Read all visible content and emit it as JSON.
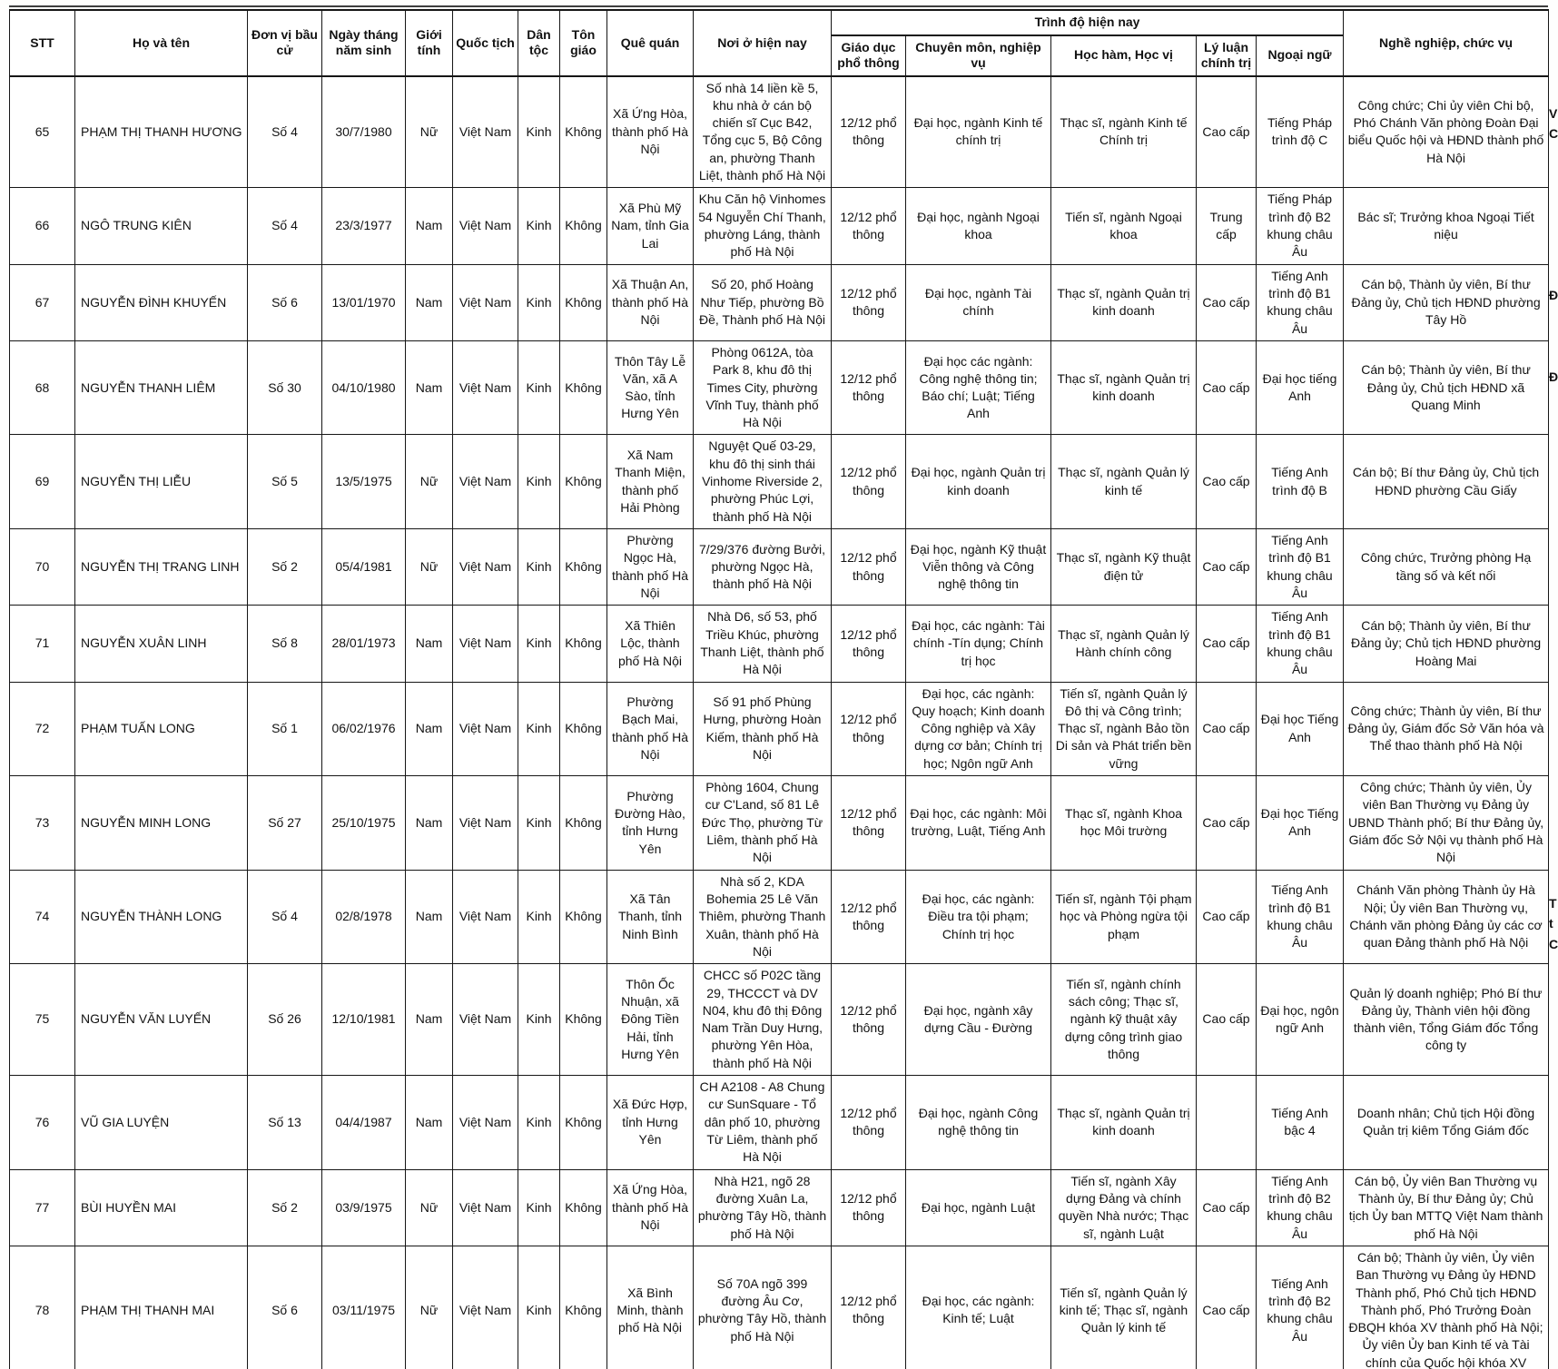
{
  "table": {
    "header": {
      "stt": "STT",
      "ho_ten": "Họ và tên",
      "don_vi": "Đơn vị bầu cử",
      "ngay_sinh": "Ngày tháng năm sinh",
      "gioi_tinh": "Giới tính",
      "quoc_tich": "Quốc tịch",
      "dan_toc": "Dân tộc",
      "ton_giao": "Tôn giáo",
      "que_quan": "Quê quán",
      "noi_o": "Nơi ở hiện nay",
      "trinh_do_group": "Trình độ hiện nay",
      "giao_duc": "Giáo dục phổ thông",
      "chuyen_mon": "Chuyên môn, nghiệp vụ",
      "hoc_ham": "Học hàm, Học vị",
      "ly_luan": "Lý luận chính trị",
      "ngoai_ngu": "Ngoại ngữ",
      "nghe_nghiep": "Nghề nghiệp, chức vụ"
    },
    "rows": [
      {
        "stt": "65",
        "ho_ten": "PHẠM THỊ THANH HƯƠNG",
        "don_vi": "Số 4",
        "ngay_sinh": "30/7/1980",
        "gioi_tinh": "Nữ",
        "quoc_tich": "Việt Nam",
        "dan_toc": "Kinh",
        "ton_giao": "Không",
        "que_quan": "Xã Ứng Hòa, thành phố Hà Nội",
        "noi_o": "Số nhà 14 liền kề 5, khu nhà ở cán bộ chiến sĩ Cục B42, Tổng cục 5, Bộ Công an, phường Thanh Liệt, thành phố Hà Nội",
        "giao_duc": "12/12 phổ thông",
        "chuyen_mon": "Đại học, ngành Kinh tế chính trị",
        "hoc_ham": "Thạc sĩ, ngành Kinh tế Chính trị",
        "ly_luan": "Cao cấp",
        "ngoai_ngu": "Tiếng Pháp trình độ C",
        "nghe_nghiep": "Công chức; Chi ủy viên Chi bộ, Phó Chánh Văn phòng Đoàn Đại biểu Quốc hội và HĐND thành phố Hà Nội"
      },
      {
        "stt": "66",
        "ho_ten": "NGÔ TRUNG KIÊN",
        "don_vi": "Số 4",
        "ngay_sinh": "23/3/1977",
        "gioi_tinh": "Nam",
        "quoc_tich": "Việt Nam",
        "dan_toc": "Kinh",
        "ton_giao": "Không",
        "que_quan": "Xã Phù Mỹ Nam, tỉnh Gia Lai",
        "noi_o": "Khu Căn hộ Vinhomes 54 Nguyễn Chí Thanh, phường Láng, thành phố Hà Nội",
        "giao_duc": "12/12 phổ thông",
        "chuyen_mon": "Đại học, ngành Ngoại khoa",
        "hoc_ham": "Tiến sĩ, ngành Ngoại khoa",
        "ly_luan": "Trung cấp",
        "ngoai_ngu": "Tiếng Pháp trình độ B2 khung châu Âu",
        "nghe_nghiep": "Bác sĩ; Trưởng khoa Ngoại Tiết niệu"
      },
      {
        "stt": "67",
        "ho_ten": "NGUYỄN ĐÌNH KHUYẾN",
        "don_vi": "Số 6",
        "ngay_sinh": "13/01/1970",
        "gioi_tinh": "Nam",
        "quoc_tich": "Việt Nam",
        "dan_toc": "Kinh",
        "ton_giao": "Không",
        "que_quan": "Xã Thuận An, thành phố Hà Nội",
        "noi_o": "Số 20, phố Hoàng Như Tiếp, phường Bồ Đề, Thành phố Hà Nội",
        "giao_duc": "12/12 phổ thông",
        "chuyen_mon": "Đại học, ngành Tài chính",
        "hoc_ham": "Thạc sĩ, ngành Quản trị kinh doanh",
        "ly_luan": "Cao cấp",
        "ngoai_ngu": "Tiếng Anh trình độ B1 khung châu Âu",
        "nghe_nghiep": "Cán bộ, Thành ủy viên, Bí thư Đảng ủy, Chủ tịch HĐND phường Tây Hồ"
      },
      {
        "stt": "68",
        "ho_ten": "NGUYỄN THANH LIÊM",
        "don_vi": "Số 30",
        "ngay_sinh": "04/10/1980",
        "gioi_tinh": "Nam",
        "quoc_tich": "Việt Nam",
        "dan_toc": "Kinh",
        "ton_giao": "Không",
        "que_quan": "Thôn Tây Lễ Văn, xã A Sào, tỉnh Hưng Yên",
        "noi_o": "Phòng 0612A, tòa Park 8, khu đô thị Times City, phường Vĩnh Tuy, thành phố Hà Nội",
        "giao_duc": "12/12 phổ thông",
        "chuyen_mon": "Đại học các ngành: Công nghệ thông tin; Báo chí; Luật; Tiếng Anh",
        "hoc_ham": "Thạc sĩ, ngành Quản trị kinh doanh",
        "ly_luan": "Cao cấp",
        "ngoai_ngu": "Đại học tiếng Anh",
        "nghe_nghiep": "Cán bộ; Thành ủy viên, Bí thư Đảng ủy, Chủ tịch HĐND xã Quang Minh"
      },
      {
        "stt": "69",
        "ho_ten": "NGUYỄN THỊ LIỄU",
        "don_vi": "Số 5",
        "ngay_sinh": "13/5/1975",
        "gioi_tinh": "Nữ",
        "quoc_tich": "Việt Nam",
        "dan_toc": "Kinh",
        "ton_giao": "Không",
        "que_quan": "Xã Nam Thanh Miện, thành phố Hải Phòng",
        "noi_o": "Nguyệt Quế 03-29, khu đô thị sinh thái Vinhome Riverside 2, phường Phúc Lợi, thành phố Hà Nội",
        "giao_duc": "12/12 phổ thông",
        "chuyen_mon": "Đại học, ngành Quản trị kinh doanh",
        "hoc_ham": "Thạc sĩ, ngành Quản lý kinh tế",
        "ly_luan": "Cao cấp",
        "ngoai_ngu": "Tiếng Anh trình độ B",
        "nghe_nghiep": "Cán bộ; Bí thư Đảng ủy, Chủ tịch HĐND phường Cầu Giấy"
      },
      {
        "stt": "70",
        "ho_ten": "NGUYỄN THỊ TRANG LINH",
        "don_vi": "Số 2",
        "ngay_sinh": "05/4/1981",
        "gioi_tinh": "Nữ",
        "quoc_tich": "Việt Nam",
        "dan_toc": "Kinh",
        "ton_giao": "Không",
        "que_quan": "Phường Ngọc Hà, thành phố Hà Nội",
        "noi_o": "7/29/376 đường Bưởi, phường Ngọc Hà, thành phố Hà Nội",
        "giao_duc": "12/12 phổ thông",
        "chuyen_mon": "Đại học, ngành Kỹ thuật Viễn thông và Công nghệ thông tin",
        "hoc_ham": "Thạc sĩ, ngành Kỹ thuật điện tử",
        "ly_luan": "Cao cấp",
        "ngoai_ngu": "Tiếng Anh trình độ B1 khung châu Âu",
        "nghe_nghiep": "Công chức, Trưởng phòng Hạ tầng số và kết nối"
      },
      {
        "stt": "71",
        "ho_ten": "NGUYỄN XUÂN LINH",
        "don_vi": "Số 8",
        "ngay_sinh": "28/01/1973",
        "gioi_tinh": "Nam",
        "quoc_tich": "Việt Nam",
        "dan_toc": "Kinh",
        "ton_giao": "Không",
        "que_quan": "Xã Thiên Lộc, thành phố Hà Nội",
        "noi_o": "Nhà D6, số 53, phố Triều Khúc, phường Thanh Liệt, thành phố Hà Nội",
        "giao_duc": "12/12 phổ thông",
        "chuyen_mon": "Đại học, các ngành: Tài chính -Tín dụng; Chính trị học",
        "hoc_ham": "Thạc sĩ, ngành Quản lý Hành chính công",
        "ly_luan": "Cao cấp",
        "ngoai_ngu": "Tiếng Anh trình độ B1 khung châu Âu",
        "nghe_nghiep": "Cán bộ; Thành ủy viên, Bí thư Đảng ủy; Chủ tịch HĐND phường Hoàng Mai"
      },
      {
        "stt": "72",
        "ho_ten": "PHẠM TUẤN LONG",
        "don_vi": "Số 1",
        "ngay_sinh": "06/02/1976",
        "gioi_tinh": "Nam",
        "quoc_tich": "Việt Nam",
        "dan_toc": "Kinh",
        "ton_giao": "Không",
        "que_quan": "Phường Bạch Mai, thành phố Hà Nội",
        "noi_o": "Số 91 phố Phùng Hưng, phường Hoàn Kiếm, thành phố Hà Nội",
        "giao_duc": "12/12 phổ thông",
        "chuyen_mon": "Đại học, các ngành: Quy hoạch; Kinh doanh Công nghiệp và Xây dựng cơ bản; Chính trị học; Ngôn ngữ Anh",
        "hoc_ham": "Tiến sĩ, ngành Quản lý Đô thị và Công trình; Thạc sĩ, ngành Bảo tồn Di sản và Phát triển bền vững",
        "ly_luan": "Cao cấp",
        "ngoai_ngu": "Đại học Tiếng Anh",
        "nghe_nghiep": "Công chức; Thành ủy viên, Bí thư Đảng ủy, Giám đốc Sở Văn hóa và Thể thao thành phố Hà Nội"
      },
      {
        "stt": "73",
        "ho_ten": "NGUYỄN MINH LONG",
        "don_vi": "Số 27",
        "ngay_sinh": "25/10/1975",
        "gioi_tinh": "Nam",
        "quoc_tich": "Việt Nam",
        "dan_toc": "Kinh",
        "ton_giao": "Không",
        "que_quan": "Phường Đường Hào, tỉnh Hưng Yên",
        "noi_o": "Phòng 1604, Chung cư C'Land, số 81 Lê Đức Thọ, phường Từ Liêm, thành phố Hà Nội",
        "giao_duc": "12/12 phổ thông",
        "chuyen_mon": "Đại học, các ngành: Môi trường, Luật, Tiếng Anh",
        "hoc_ham": "Thạc sĩ, ngành Khoa học Môi trường",
        "ly_luan": "Cao cấp",
        "ngoai_ngu": "Đại học Tiếng Anh",
        "nghe_nghiep": "Công chức; Thành ủy viên, Ủy viên Ban Thường vụ Đảng ủy UBND Thành phố; Bí thư Đảng ủy, Giám đốc Sở Nội vụ thành phố Hà Nội"
      },
      {
        "stt": "74",
        "ho_ten": "NGUYỄN THÀNH LONG",
        "don_vi": "Số 4",
        "ngay_sinh": "02/8/1978",
        "gioi_tinh": "Nam",
        "quoc_tich": "Việt Nam",
        "dan_toc": "Kinh",
        "ton_giao": "Không",
        "que_quan": "Xã Tân Thanh, tỉnh Ninh Bình",
        "noi_o": "Nhà số 2, KDA Bohemia 25 Lê Văn Thiêm, phường Thanh Xuân, thành phố Hà Nội",
        "giao_duc": "12/12 phổ thông",
        "chuyen_mon": "Đại học, các ngành: Điều tra tội phạm; Chính trị học",
        "hoc_ham": "Tiến sĩ, ngành Tội phạm học và Phòng ngừa tội phạm",
        "ly_luan": "Cao cấp",
        "ngoai_ngu": "Tiếng Anh trình độ B1 khung châu Âu",
        "nghe_nghiep": "Chánh Văn phòng Thành ủy Hà Nội; Ủy viên Ban Thường vụ, Chánh văn phòng Đảng ủy các cơ quan Đảng thành phố Hà Nội"
      },
      {
        "stt": "75",
        "ho_ten": "NGUYỄN VĂN LUYẾN",
        "don_vi": "Số 26",
        "ngay_sinh": "12/10/1981",
        "gioi_tinh": "Nam",
        "quoc_tich": "Việt Nam",
        "dan_toc": "Kinh",
        "ton_giao": "Không",
        "que_quan": "Thôn Ốc Nhuận, xã Đông Tiền Hải, tỉnh Hưng Yên",
        "noi_o": "CHCC số P02C tầng 29, THCCCT và DV N04, khu đô thị Đông Nam Trần Duy Hưng, phường Yên Hòa, thành phố Hà Nội",
        "giao_duc": "12/12 phổ thông",
        "chuyen_mon": "Đại học, ngành xây dựng Cầu - Đường",
        "hoc_ham": "Tiến sĩ, ngành chính sách công; Thạc sĩ, ngành kỹ thuật xây dựng công trình giao thông",
        "ly_luan": "Cao cấp",
        "ngoai_ngu": "Đại học, ngôn ngữ Anh",
        "nghe_nghiep": "Quản lý doanh nghiệp; Phó Bí thư Đảng ủy, Thành viên hội đồng thành viên, Tổng Giám đốc Tổng công ty"
      },
      {
        "stt": "76",
        "ho_ten": "VŨ GIA LUYỆN",
        "don_vi": "Số 13",
        "ngay_sinh": "04/4/1987",
        "gioi_tinh": "Nam",
        "quoc_tich": "Việt Nam",
        "dan_toc": "Kinh",
        "ton_giao": "Không",
        "que_quan": "Xã Đức Hợp, tỉnh Hưng Yên",
        "noi_o": "CH A2108 - A8 Chung cư SunSquare - Tổ dân phố 10, phường Từ Liêm, thành phố Hà Nội",
        "giao_duc": "12/12 phổ thông",
        "chuyen_mon": "Đại học, ngành Công nghệ thông tin",
        "hoc_ham": "Thạc sĩ, ngành Quản trị kinh doanh",
        "ly_luan": "",
        "ngoai_ngu": "Tiếng Anh bậc 4",
        "nghe_nghiep": "Doanh nhân; Chủ tịch Hội đồng Quản trị kiêm Tổng Giám đốc"
      },
      {
        "stt": "77",
        "ho_ten": "BÙI HUYỀN MAI",
        "don_vi": "Số 2",
        "ngay_sinh": "03/9/1975",
        "gioi_tinh": "Nữ",
        "quoc_tich": "Việt Nam",
        "dan_toc": "Kinh",
        "ton_giao": "Không",
        "que_quan": "Xã Ứng Hòa, thành phố Hà Nội",
        "noi_o": "Nhà H21, ngõ 28 đường Xuân La, phường Tây Hồ, thành phố Hà Nội",
        "giao_duc": "12/12 phổ thông",
        "chuyen_mon": "Đại học, ngành Luật",
        "hoc_ham": "Tiến sĩ, ngành Xây dựng Đảng và chính quyền Nhà nước; Thạc sĩ, ngành Luật",
        "ly_luan": "Cao cấp",
        "ngoai_ngu": "Tiếng Anh trình độ B2 khung châu Âu",
        "nghe_nghiep": "Cán bộ, Ủy viên Ban Thường vụ Thành ủy, Bí thư Đảng ủy; Chủ tịch Ủy ban MTTQ Việt Nam thành phố Hà Nội"
      },
      {
        "stt": "78",
        "ho_ten": "PHẠM THỊ THANH MAI",
        "don_vi": "Số 6",
        "ngay_sinh": "03/11/1975",
        "gioi_tinh": "Nữ",
        "quoc_tich": "Việt Nam",
        "dan_toc": "Kinh",
        "ton_giao": "Không",
        "que_quan": "Xã Bình Minh, thành phố Hà Nội",
        "noi_o": "Số 70A ngõ 399 đường Âu Cơ, phường Tây Hồ, thành phố Hà Nội",
        "giao_duc": "12/12 phổ thông",
        "chuyen_mon": "Đại học, các ngành: Kinh tế; Luật",
        "hoc_ham": "Tiến sĩ, ngành Quản lý kinh tế; Thạc sĩ, ngành Quản lý kinh tế",
        "ly_luan": "Cao cấp",
        "ngoai_ngu": "Tiếng Anh trình độ B2 khung châu Âu",
        "nghe_nghiep": "Cán bộ; Thành ủy viên, Ủy viên Ban Thường vụ Đảng ủy HĐND Thành phố, Phó Chủ tịch HĐND Thành phố, Phó Trưởng Đoàn ĐBQH khóa XV thành phố Hà Nội; Ủy viên Ủy ban Kinh tế và Tài chính của Quốc hội khóa XV"
      }
    ]
  },
  "edge_fragments": {
    "r65": "V\nC",
    "r67": "Đ",
    "r68": "Đ",
    "r75": "T\nt\nC"
  }
}
